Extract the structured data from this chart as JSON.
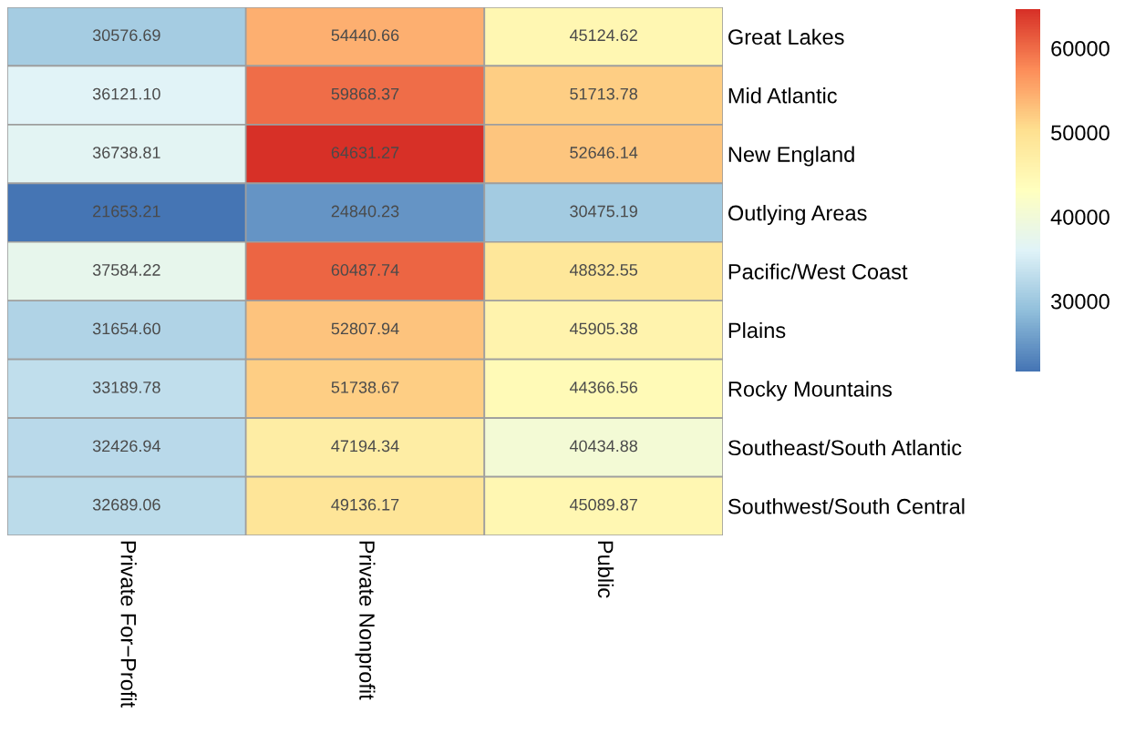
{
  "chart_data": {
    "type": "heatmap",
    "categories": [
      "Private For−Profit",
      "Private Nonprofit",
      "Public"
    ],
    "y_categories": [
      "Great Lakes",
      "Mid Atlantic",
      "New England",
      "Outlying Areas",
      "Pacific/West Coast",
      "Plains",
      "Rocky Mountains",
      "Southeast/South Atlantic",
      "Southwest/South Central"
    ],
    "cells": [
      [
        30576.69,
        54440.66,
        45124.62
      ],
      [
        36121.1,
        59868.37,
        51713.78
      ],
      [
        36738.81,
        64631.27,
        52646.14
      ],
      [
        21653.21,
        24840.23,
        30475.19
      ],
      [
        37584.22,
        60487.74,
        48832.55
      ],
      [
        31654.6,
        52807.94,
        45905.38
      ],
      [
        33189.78,
        51738.67,
        44366.56
      ],
      [
        32426.94,
        47194.34,
        40434.88
      ],
      [
        32689.06,
        49136.17,
        45089.87
      ]
    ],
    "cell_labels": [
      [
        "30576.69",
        "54440.66",
        "45124.62"
      ],
      [
        "36121.10",
        "59868.37",
        "51713.78"
      ],
      [
        "36738.81",
        "64631.27",
        "52646.14"
      ],
      [
        "21653.21",
        "24840.23",
        "30475.19"
      ],
      [
        "37584.22",
        "60487.74",
        "48832.55"
      ],
      [
        "31654.60",
        "52807.94",
        "45905.38"
      ],
      [
        "33189.78",
        "51738.67",
        "44366.56"
      ],
      [
        "32426.94",
        "47194.34",
        "40434.88"
      ],
      [
        "32689.06",
        "49136.17",
        "45089.87"
      ]
    ],
    "clim": [
      21653.21,
      64631.27
    ],
    "cticks": [
      30000,
      40000,
      50000,
      60000
    ]
  }
}
